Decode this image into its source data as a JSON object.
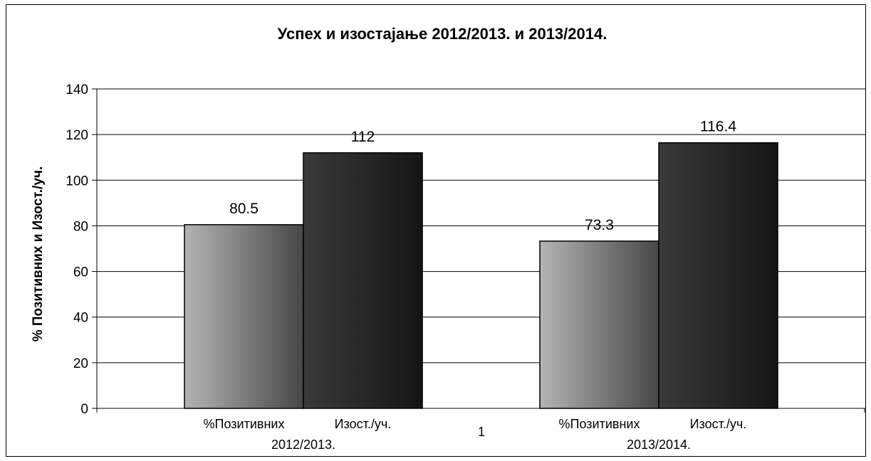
{
  "chart_data": {
    "type": "bar",
    "title": "Успех и изостајање 2012/2013. и 2013/2014.",
    "ylabel": "% Позитивних и Изост./уч.",
    "xlabel": "",
    "ylim": [
      0,
      140
    ],
    "yticks": [
      0,
      20,
      40,
      60,
      80,
      100,
      120,
      140
    ],
    "grid": true,
    "x_axis_label": "1",
    "series": [
      {
        "name": "%Позитивних 2012/2013.",
        "values": [
          80.5
        ],
        "label_line1": "%Позитивних",
        "label_line2": "2012/2013.",
        "fill": "gradient-light"
      },
      {
        "name": "Изост./уч. 2012/2013.",
        "values": [
          112
        ],
        "label_line1": "Изост./уч.",
        "label_line2": "",
        "fill": "gradient-dark"
      },
      {
        "name": "%Позитивних 2013/2014.",
        "values": [
          73.3
        ],
        "label_line1": "%Позитивних",
        "label_line2": "2013/2014.",
        "fill": "gradient-light"
      },
      {
        "name": "Изост./уч. 2013/2014.",
        "values": [
          116.4
        ],
        "label_line1": "Изост./уч.",
        "label_line2": "",
        "fill": "gradient-dark"
      }
    ],
    "data_labels": [
      "80.5",
      "112",
      "73.3",
      "116.4"
    ],
    "colors": {
      "light_start": "#b4b4b4",
      "light_end": "#474747",
      "dark_start": "#3a3a3a",
      "dark_end": "#151515",
      "grid": "#000000"
    }
  }
}
